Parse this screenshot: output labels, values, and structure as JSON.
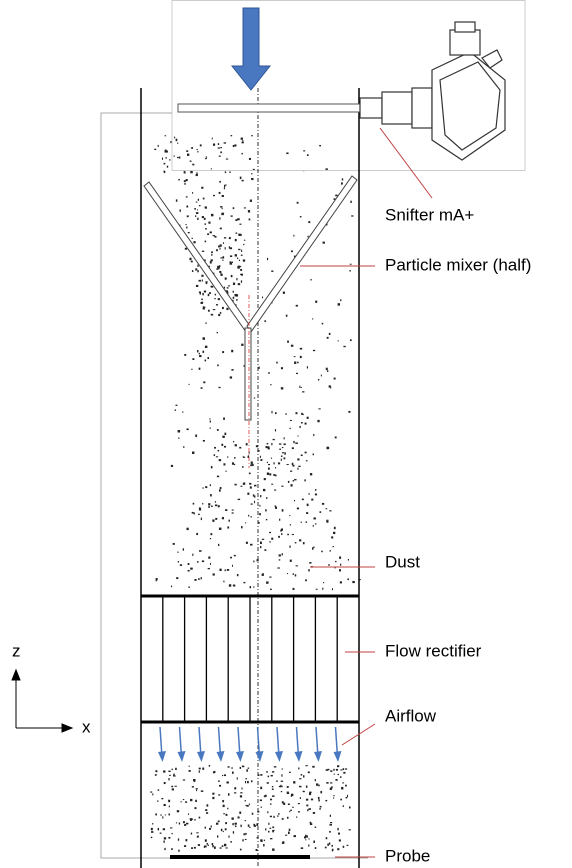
{
  "labels": {
    "snifter": "Snifter mA+",
    "mixer": "Particle mixer (half)",
    "dust": "Dust",
    "rectifier": "Flow rectifier",
    "airflow": "Airflow",
    "probe": "Probe"
  },
  "axes": {
    "z": "z",
    "x": "x"
  }
}
